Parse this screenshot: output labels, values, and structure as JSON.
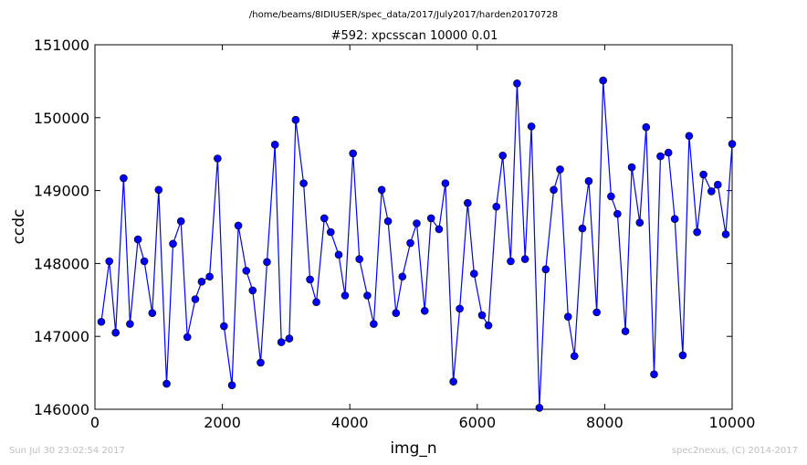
{
  "chart_data": {
    "type": "line",
    "suptitle": "/home/beams/8IDIUSER/spec_data/2017/July2017/harden20170728",
    "title": "#592: xpcsscan 10000 0.01",
    "xlabel": "img_n",
    "ylabel": "ccdc",
    "xlim": [
      0,
      10000
    ],
    "ylim": [
      146000,
      151000
    ],
    "xticks": [
      0,
      2000,
      4000,
      6000,
      8000,
      10000
    ],
    "yticks": [
      146000,
      147000,
      148000,
      149000,
      150000,
      151000
    ],
    "grid": false,
    "legend": "none",
    "series_color": "#0000ff",
    "x": [
      100,
      225,
      325,
      450,
      550,
      675,
      775,
      900,
      1000,
      1125,
      1225,
      1350,
      1450,
      1575,
      1675,
      1800,
      1925,
      2025,
      2150,
      2250,
      2375,
      2475,
      2600,
      2700,
      2825,
      2925,
      3050,
      3150,
      3275,
      3375,
      3475,
      3600,
      3700,
      3825,
      3925,
      4050,
      4150,
      4275,
      4375,
      4500,
      4600,
      4725,
      4825,
      4950,
      5050,
      5175,
      5275,
      5400,
      5500,
      5625,
      5725,
      5850,
      5950,
      6075,
      6175,
      6300,
      6400,
      6525,
      6625,
      6750,
      6850,
      6975,
      7075,
      7200,
      7300,
      7425,
      7525,
      7650,
      7750,
      7875,
      7975,
      8100,
      8200,
      8325,
      8425,
      8550,
      8650,
      8775,
      8875,
      9000,
      9100,
      9225,
      9325,
      9450,
      9550,
      9675,
      9775,
      9900,
      10000
    ],
    "values": [
      147200,
      148030,
      147050,
      149170,
      147170,
      148330,
      148030,
      147320,
      149010,
      146350,
      148270,
      148580,
      146990,
      147510,
      147750,
      147820,
      149440,
      147140,
      146330,
      148520,
      147900,
      147630,
      146640,
      148020,
      149630,
      146920,
      146970,
      149970,
      149100,
      147780,
      147470,
      148620,
      148430,
      148120,
      147560,
      149510,
      148060,
      147560,
      147170,
      149010,
      148580,
      147320,
      147820,
      148280,
      148550,
      147350,
      148620,
      148470,
      149100,
      146380,
      147380,
      148830,
      147860,
      147290,
      147150,
      148780,
      149480,
      148030,
      150470,
      148060,
      149880,
      146020,
      147920,
      149010,
      149290,
      147270,
      146730,
      148480,
      149130,
      147330,
      150510,
      148920,
      148680,
      147070,
      149320,
      148560,
      149870,
      146480,
      149470,
      149520,
      148610,
      146740,
      149750,
      148430,
      149220,
      148990,
      149080,
      148400,
      149640
    ]
  },
  "footer": {
    "timestamp": "Sun Jul 30 23:02:54 2017",
    "credit": "spec2nexus, (C) 2014-2017"
  }
}
